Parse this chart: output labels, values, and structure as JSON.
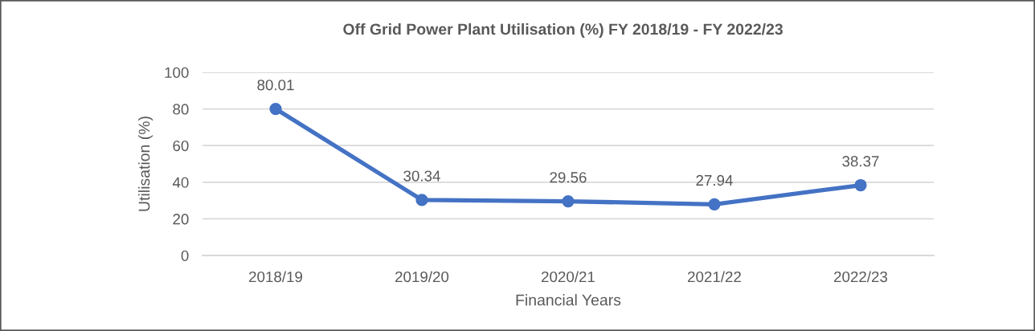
{
  "chart_data": {
    "type": "line",
    "title": "Off Grid Power Plant Utilisation (%) FY 2018/19 - FY 2022/23",
    "xlabel": "Financial Years",
    "ylabel": "Utilisation (%)",
    "categories": [
      "2018/19",
      "2019/20",
      "2020/21",
      "2021/22",
      "2022/23"
    ],
    "series": [
      {
        "color": "#4472c4",
        "values": [
          80.01,
          30.34,
          29.56,
          27.94,
          38.37
        ]
      }
    ],
    "ylim": [
      0,
      100
    ],
    "yticks": [
      0,
      20,
      40,
      60,
      80,
      100
    ],
    "grid": "y",
    "marker": "circle",
    "line_style": "solid",
    "data_labels": true
  }
}
